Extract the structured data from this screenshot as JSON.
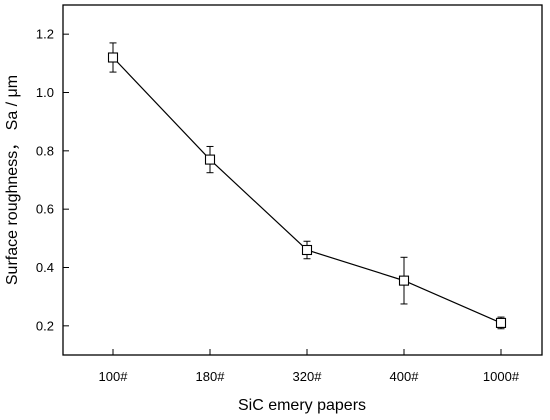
{
  "chart_data": {
    "type": "line",
    "title": "",
    "xlabel": "SiC emery papers",
    "ylabel": "Surface roughness， Sa / μm",
    "categories": [
      "100#",
      "180#",
      "320#",
      "400#",
      "1000#"
    ],
    "series": [
      {
        "values": [
          1.12,
          0.77,
          0.46,
          0.355,
          0.21
        ],
        "errors": [
          0.05,
          0.045,
          0.03,
          0.08,
          0.02
        ]
      }
    ],
    "ylim": [
      0.1,
      1.3
    ],
    "yticks": [
      0.2,
      0.4,
      0.6,
      0.8,
      1.0,
      1.2
    ],
    "ytick_labels": [
      "0.2",
      "0.4",
      "0.6",
      "0.8",
      "1.0",
      "1.2"
    ],
    "grid": false,
    "legend": "none",
    "marker": "open-square",
    "line_color": "#000000"
  }
}
